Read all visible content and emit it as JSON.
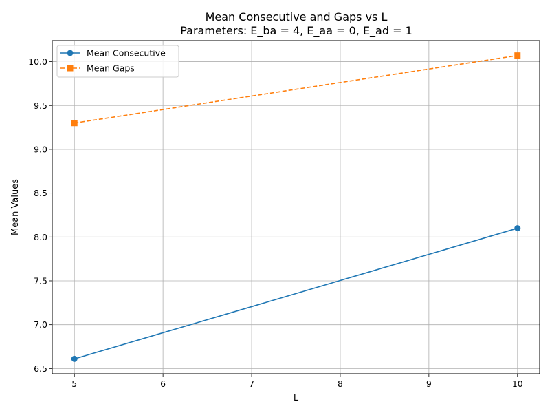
{
  "chart_data": {
    "type": "line",
    "title": "Mean Consecutive and Gaps vs L",
    "subtitle": "Parameters: E_ba = 4, E_aa = 0, E_ad = 1",
    "xlabel": "L",
    "ylabel": "Mean Values",
    "xlim": [
      4.75,
      10.25
    ],
    "ylim": [
      6.44,
      10.24
    ],
    "xticks": [
      5,
      6,
      7,
      8,
      9,
      10
    ],
    "yticks": [
      6.5,
      7.0,
      7.5,
      8.0,
      8.5,
      9.0,
      9.5,
      10.0
    ],
    "grid": true,
    "legend_position": "upper-left",
    "series": [
      {
        "name": "Mean Consecutive",
        "x": [
          5,
          10
        ],
        "y": [
          6.61,
          8.1
        ],
        "color": "#1f77b4",
        "marker": "circle",
        "linestyle": "solid"
      },
      {
        "name": "Mean Gaps",
        "x": [
          5,
          10
        ],
        "y": [
          9.3,
          10.07
        ],
        "color": "#ff7f0e",
        "marker": "square",
        "linestyle": "dashed"
      }
    ]
  }
}
